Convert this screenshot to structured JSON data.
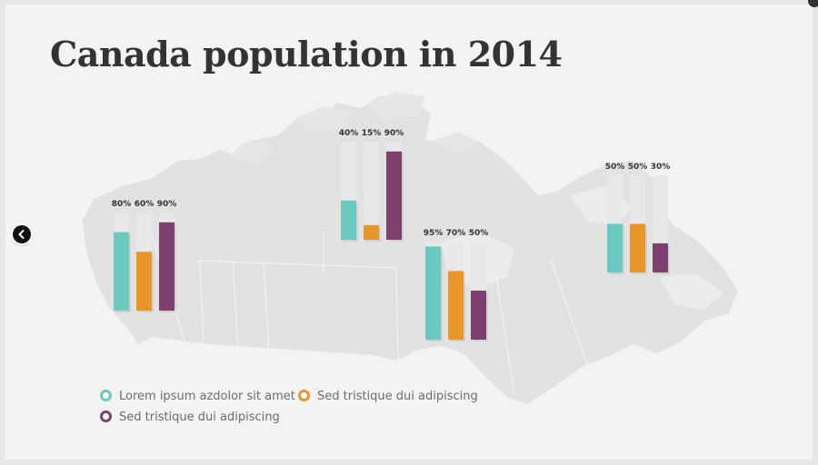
{
  "title": "Canada population in 2014",
  "colors": {
    "series1": "#6cc9c0",
    "series2": "#e8962a",
    "series3": "#7e416f",
    "track": "#e8e8e8",
    "map": "#e0e0e0"
  },
  "chart_data": {
    "type": "bar",
    "ylim": [
      0,
      100
    ],
    "unit": "%",
    "groups": [
      {
        "values": [
          80,
          60,
          90
        ],
        "labels": [
          "80%",
          "60%",
          "90%"
        ]
      },
      {
        "values": [
          40,
          15,
          90
        ],
        "labels": [
          "40%",
          "15%",
          "90%"
        ]
      },
      {
        "values": [
          95,
          70,
          50
        ],
        "labels": [
          "95%",
          "70%",
          "50%"
        ]
      },
      {
        "values": [
          50,
          50,
          30
        ],
        "labels": [
          "50%",
          "50%",
          "30%"
        ]
      }
    ],
    "series": [
      {
        "name": "Lorem ipsum azdolor sit amet"
      },
      {
        "name": "Sed tristique dui adipiscing"
      },
      {
        "name": "Sed tristique dui adipiscing"
      }
    ],
    "legend_position": "bottom-left"
  },
  "icons": {
    "prev": "chevron-left-icon"
  }
}
